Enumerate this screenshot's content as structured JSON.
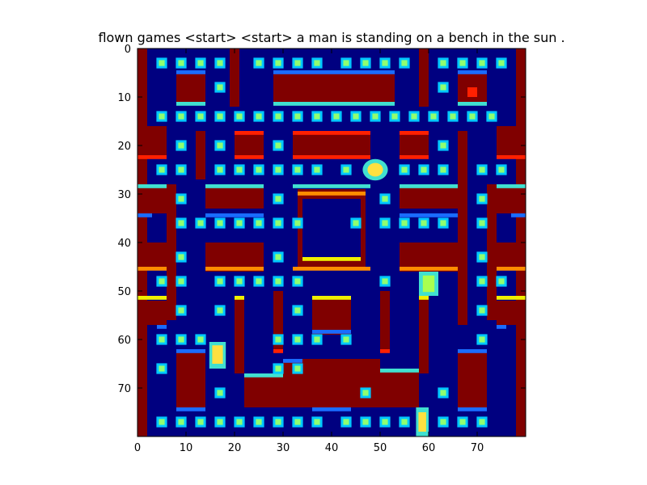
{
  "chart_data": {
    "type": "heatmap",
    "title": "flown games <start> <start> a man is standing on a bench in the sun .",
    "xlabel": "",
    "ylabel": "",
    "grid_size": 80,
    "xlim": [
      0,
      80
    ],
    "ylim": [
      80,
      0
    ],
    "x_ticks": [
      0,
      10,
      20,
      30,
      40,
      50,
      60,
      70
    ],
    "y_ticks": [
      0,
      10,
      20,
      30,
      40,
      50,
      60,
      70
    ],
    "colormap": "jet",
    "colors": {
      "background": "#000080",
      "wall": "#800000",
      "wall_edge_red": "#ff2000",
      "edge_orange": "#ff8c00",
      "edge_yellow": "#f0f000",
      "edge_cyan": "#40e0d0",
      "edge_blue": "#1a6cff",
      "pellet_outer": "#00c8ff",
      "pellet_inner": "#90ff70",
      "sprite_a": "#a8ff50",
      "sprite_b": "#ffe040"
    }
  }
}
